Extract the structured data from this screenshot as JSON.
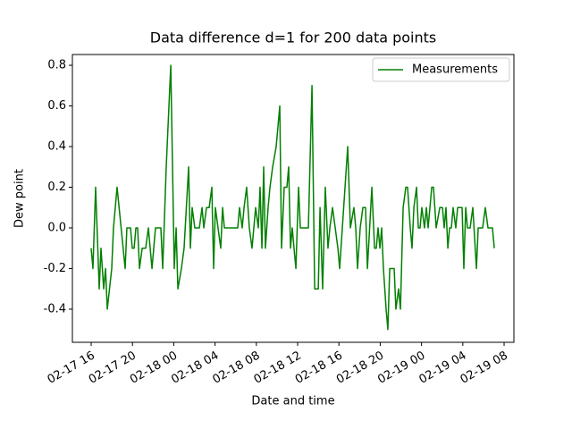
{
  "chart_data": {
    "type": "line",
    "title": "Data difference d=1 for 200 data points",
    "xlabel": "Date and time",
    "ylabel": "Dew point",
    "x": [
      16.0,
      16.17,
      16.43,
      16.78,
      16.95,
      17.21,
      17.39,
      17.56,
      17.99,
      18.16,
      18.51,
      19.29,
      19.46,
      19.81,
      19.98,
      20.16,
      20.33,
      20.5,
      20.68,
      20.94,
      21.28,
      21.54,
      21.89,
      22.23,
      22.75,
      22.93,
      23.27,
      23.71,
      24.05,
      24.23,
      24.4,
      24.74,
      25.0,
      25.44,
      25.61,
      25.78,
      26.04,
      26.48,
      26.74,
      26.91,
      27.17,
      27.43,
      27.69,
      27.86,
      28.03,
      28.29,
      28.55,
      28.73,
      28.9,
      30.2,
      30.37,
      30.63,
      30.81,
      31.06,
      31.32,
      31.58,
      31.93,
      32.19,
      32.36,
      32.54,
      32.71,
      32.88,
      33.14,
      33.32,
      33.58,
      33.92,
      34.27,
      34.44,
      34.7,
      34.96,
      35.13,
      35.31,
      35.48,
      35.65,
      35.83,
      36.09,
      36.26,
      36.61,
      37.04,
      37.39,
      37.65,
      38.0,
      38.17,
      38.42,
      38.68,
      38.94,
      39.12,
      39.38,
      39.64,
      39.9,
      40.07,
      40.59,
      40.85,
      41.11,
      41.45,
      41.63,
      41.8,
      42.06,
      42.32,
      42.58,
      42.76,
      43.19,
      43.45,
      43.62,
      43.79,
      43.97,
      44.14,
      44.31,
      44.57,
      44.74,
      44.92,
      45.35,
      45.52,
      45.78,
      45.96,
      46.22,
      46.48,
      46.65,
      46.91,
      47.08,
      47.26,
      47.52,
      47.69,
      47.86,
      48.03,
      48.29,
      48.47,
      48.64,
      48.99,
      49.16,
      49.42,
      49.77,
      50.03,
      50.2,
      50.37,
      50.55,
      50.72,
      50.89,
      51.06,
      51.32,
      51.5,
      51.76,
      51.93,
      52.1,
      52.28,
      52.45,
      52.71,
      52.97,
      53.32,
      53.49,
      53.92,
      54.18,
      54.44,
      54.7,
      54.87,
      55.05
    ],
    "series": [
      {
        "name": "Measurements",
        "color": "green",
        "values": [
          -0.1,
          -0.2,
          0.2,
          -0.3,
          -0.1,
          -0.3,
          -0.2,
          -0.4,
          -0.2,
          0,
          0.2,
          -0.2,
          0,
          0,
          -0.1,
          -0.1,
          0,
          0,
          -0.2,
          -0.1,
          -0.1,
          0,
          -0.2,
          0,
          0,
          -0.2,
          0.3,
          0.8,
          -0.2,
          0,
          -0.3,
          -0.2,
          -0.1,
          0.3,
          -0.1,
          0.1,
          0,
          0,
          0.1,
          0,
          0.1,
          0.1,
          0.2,
          -0.2,
          0.1,
          0,
          -0.1,
          0.1,
          0,
          0,
          0.1,
          0,
          0.1,
          0.2,
          0,
          -0.1,
          0.1,
          0,
          0.2,
          -0.1,
          0.3,
          -0.1,
          0.1,
          0.2,
          0.3,
          0.4,
          0.6,
          -0.1,
          0.2,
          0.2,
          0.3,
          -0.1,
          0,
          -0.1,
          -0.2,
          0.2,
          0,
          0,
          0,
          0.7,
          -0.3,
          -0.3,
          0.1,
          -0.3,
          0.2,
          -0.1,
          0,
          0.1,
          0,
          -0.1,
          -0.2,
          0.2,
          0.4,
          0,
          0.1,
          0,
          -0.2,
          0,
          0.1,
          0.1,
          -0.2,
          0.2,
          -0.1,
          -0.1,
          0,
          -0.1,
          0,
          -0.2,
          -0.4,
          -0.5,
          -0.2,
          -0.2,
          -0.4,
          -0.3,
          -0.4,
          0.1,
          0.2,
          0.2,
          0,
          -0.1,
          0.1,
          0.2,
          0,
          0,
          0.1,
          0,
          0.1,
          0,
          0.2,
          0.2,
          0,
          0.1,
          0.1,
          0,
          0.1,
          -0.1,
          0,
          0,
          0.1,
          0,
          0.1,
          0.1,
          0.1,
          -0.2,
          0.1,
          0,
          0,
          0.1,
          -0.2,
          0,
          0,
          0.1,
          0,
          0,
          0,
          -0.1
        ]
      }
    ],
    "xlim": [
      14.18,
      56.95
    ],
    "xticks": [
      {
        "value": 16,
        "label": "02-17 16"
      },
      {
        "value": 20,
        "label": "02-17 20"
      },
      {
        "value": 24,
        "label": "02-18 00"
      },
      {
        "value": 28,
        "label": "02-18 04"
      },
      {
        "value": 32,
        "label": "02-18 08"
      },
      {
        "value": 36,
        "label": "02-18 12"
      },
      {
        "value": 40,
        "label": "02-18 16"
      },
      {
        "value": 44,
        "label": "02-18 20"
      },
      {
        "value": 48,
        "label": "02-19 00"
      },
      {
        "value": 52,
        "label": "02-19 04"
      },
      {
        "value": 56,
        "label": "02-19 08"
      }
    ],
    "ylim": [
      -0.563,
      0.853
    ],
    "yticks": [
      -0.4,
      -0.2,
      {
        "value": 0,
        "label": "0.0"
      },
      0.2,
      0.4,
      0.6,
      0.8
    ],
    "legend": "upper right"
  }
}
